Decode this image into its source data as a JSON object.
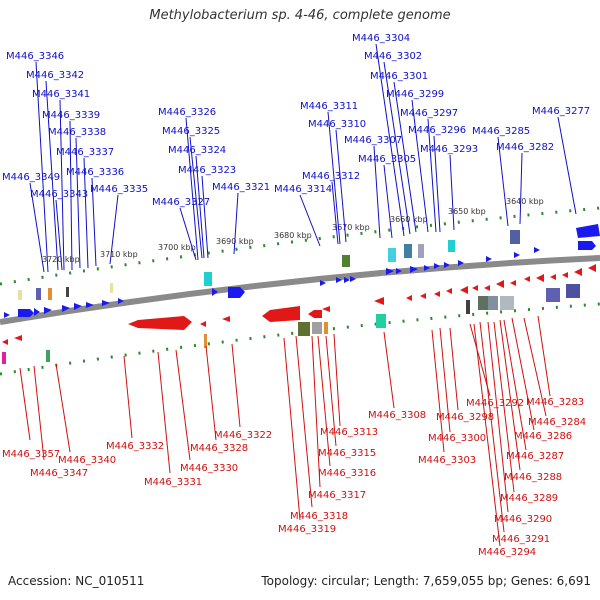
{
  "title": "Methylobacterium sp. 4-46, complete genome",
  "footer": {
    "accession": "Accession: NC_010511",
    "topology": "Topology: circular; Length: 7,659,055 bp; Genes: 6,691"
  },
  "ticks": [
    "3720 kbp",
    "3710 kbp",
    "3700 kbp",
    "3690 kbp",
    "3680 kbp",
    "3670 kbp",
    "3660 kbp",
    "3650 kbp",
    "3640 kbp"
  ],
  "forward_labels": [
    "M446_3346",
    "M446_3342",
    "M446_3341",
    "M446_3339",
    "M446_3338",
    "M446_3337",
    "M446_3336",
    "M446_3349",
    "M446_3343",
    "M446_3335",
    "M446_3326",
    "M446_3325",
    "M446_3324",
    "M446_3323",
    "M446_3327",
    "M446_3321",
    "M446_3311",
    "M446_3310",
    "M446_3312",
    "M446_3314",
    "M446_3304",
    "M446_3302",
    "M446_3301",
    "M446_3299",
    "M446_3297",
    "M446_3307",
    "M446_3296",
    "M446_3305",
    "M446_3293",
    "M446_3285",
    "M446_3282",
    "M446_3277"
  ],
  "reverse_labels": [
    "M446_3357",
    "M446_3347",
    "M446_3340",
    "M446_3332",
    "M446_3331",
    "M446_3330",
    "M446_3328",
    "M446_3322",
    "M446_3319",
    "M446_3318",
    "M446_3317",
    "M446_3316",
    "M446_3315",
    "M446_3313",
    "M446_3308",
    "M446_3303",
    "M446_3300",
    "M446_3298",
    "M446_3292",
    "M446_3294",
    "M446_3291",
    "M446_3290",
    "M446_3289",
    "M446_3288",
    "M446_3287",
    "M446_3286",
    "M446_3284",
    "M446_3283"
  ]
}
